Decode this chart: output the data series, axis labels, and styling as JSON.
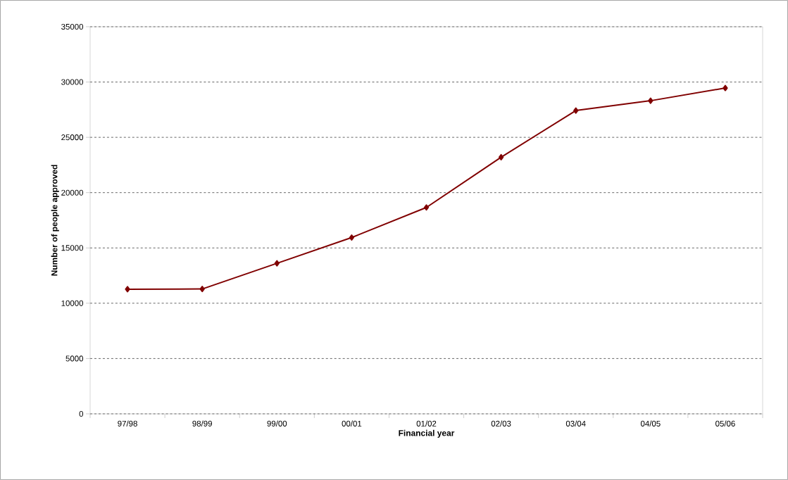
{
  "chart_data": {
    "type": "line",
    "xlabel": "Financial year",
    "ylabel": "Number of people approved",
    "categories": [
      "97/98",
      "98/99",
      "99/00",
      "00/01",
      "01/02",
      "02/03",
      "03/04",
      "04/05",
      "05/06"
    ],
    "values": [
      11270,
      11290,
      13610,
      15940,
      18660,
      23200,
      27420,
      28310,
      29460
    ],
    "color": "#800000",
    "marker": "diamond",
    "line_style": "solid",
    "ylim": [
      0,
      35000
    ],
    "yticks": [
      0,
      5000,
      10000,
      15000,
      20000,
      25000,
      30000,
      35000
    ],
    "grid": "y"
  }
}
